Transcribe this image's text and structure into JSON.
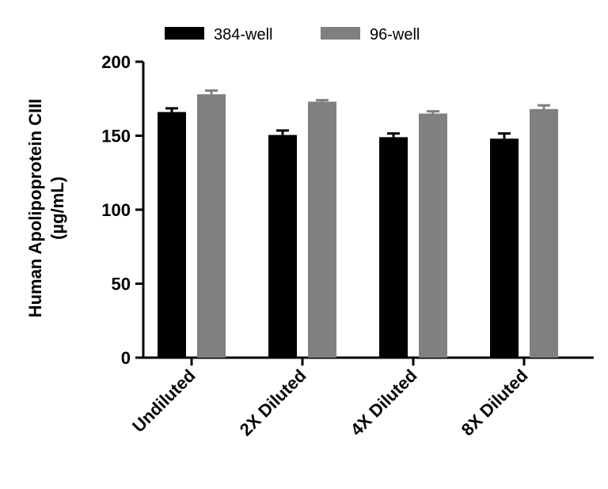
{
  "chart_data": {
    "type": "bar",
    "title": "",
    "xlabel": "",
    "ylabel_line1": "Human Apolipoprotein CIII",
    "ylabel_line2": "(µg/mL)",
    "ylim": [
      0,
      200
    ],
    "yticks": [
      0,
      50,
      100,
      150,
      200
    ],
    "categories": [
      "Undiluted",
      "2X Diluted",
      "4X Diluted",
      "8X Diluted"
    ],
    "series": [
      {
        "name": "384-well",
        "color": "#000000",
        "values": [
          166,
          150.5,
          149,
          148
        ],
        "errors": [
          2.5,
          3,
          2.5,
          3.5
        ]
      },
      {
        "name": "96-well",
        "color": "#808080",
        "values": [
          178,
          173,
          165,
          168
        ],
        "errors": [
          2.5,
          1,
          1.5,
          2.5
        ]
      }
    ],
    "legend_position": "top-center",
    "grid": false
  }
}
